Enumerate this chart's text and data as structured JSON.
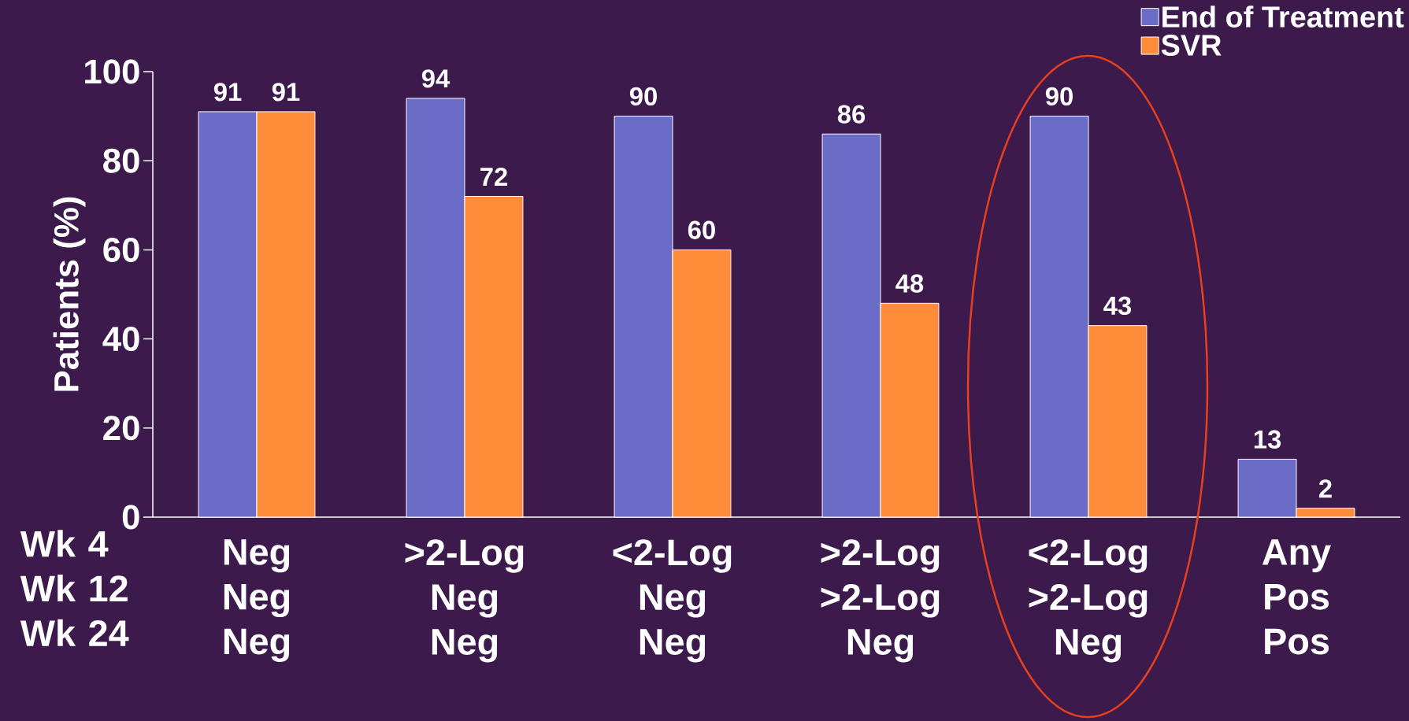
{
  "chart_data": {
    "type": "bar",
    "ylabel": "Patients (%)",
    "xlabel": "Wk 4 Wk 12 Wk 24",
    "categories": [
      "Neg Neg Neg",
      ">2-Log Neg Neg",
      "<2-Log Neg Neg",
      ">2-Log >2-Log Neg",
      "<2-Log >2-Log Neg",
      "Any Pos Pos"
    ],
    "series": [
      {
        "name": "End of Treatment",
        "color": "#6b6bc8",
        "values": [
          91,
          94,
          90,
          86,
          90,
          13
        ]
      },
      {
        "name": "SVR",
        "color": "#ff8c38",
        "values": [
          91,
          72,
          60,
          48,
          43,
          2
        ]
      }
    ],
    "ylim": [
      0,
      100
    ],
    "yticks": [
      0,
      20,
      40,
      60,
      80,
      100
    ],
    "data_labels": true,
    "legend": "top right",
    "grid": false
  }
}
